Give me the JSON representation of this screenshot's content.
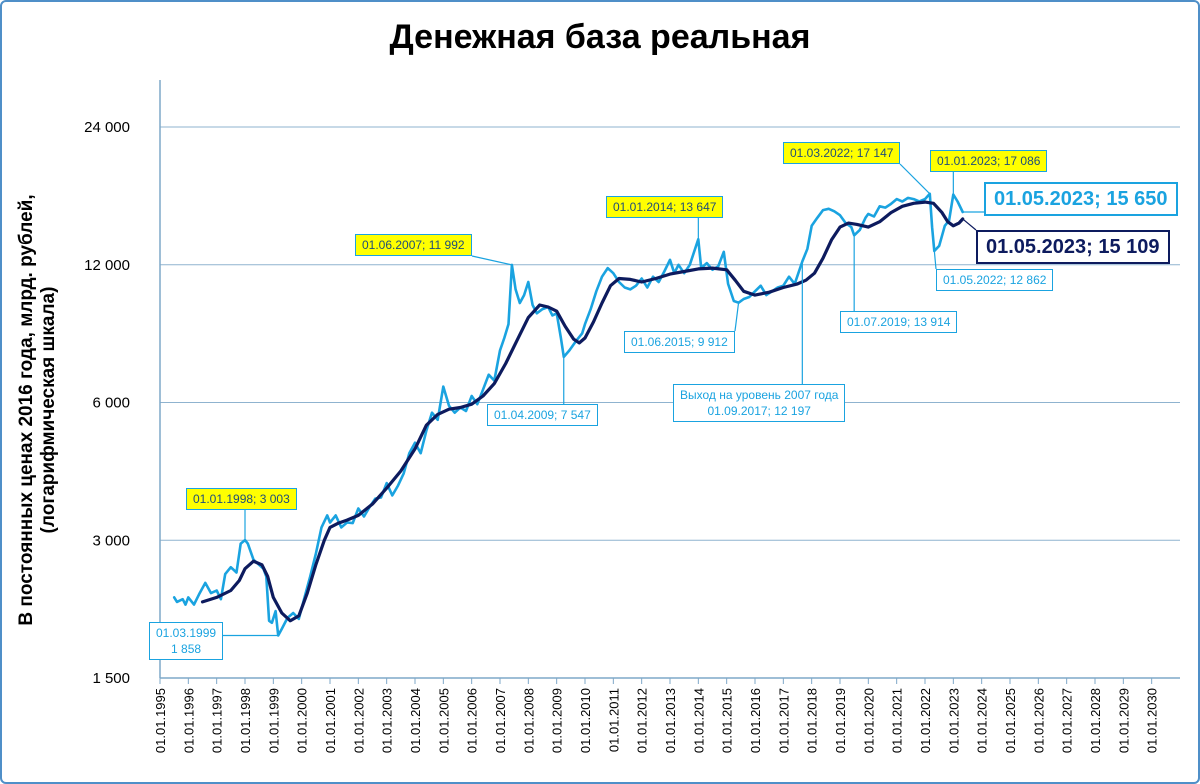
{
  "chart_data": {
    "type": "line",
    "title": "Денежная база реальная",
    "ylabel": "В постоянных ценах 2016 года, млрд. рублей,",
    "ylabel2": "(логарифмическая шкала)",
    "y_scale": "log",
    "ylim": [
      1500,
      24000
    ],
    "y_ticks": [
      1500,
      3000,
      6000,
      12000,
      24000
    ],
    "y_tick_labels": [
      "1 500",
      "3 000",
      "6 000",
      "12 000",
      "24 000"
    ],
    "grid": true,
    "x_tick_labels": [
      "01.01.1995",
      "01.01.1996",
      "01.01.1997",
      "01.01.1998",
      "01.01.1999",
      "01.01.2000",
      "01.01.2001",
      "01.01.2002",
      "01.01.2003",
      "01.01.2004",
      "01.01.2005",
      "01.01.2006",
      "01.01.2007",
      "01.01.2008",
      "01.01.2009",
      "01.01.2010",
      "01.01.2011",
      "01.01.2012",
      "01.01.2013",
      "01.01.2014",
      "01.01.2015",
      "01.01.2016",
      "01.01.2017",
      "01.01.2018",
      "01.01.2019",
      "01.01.2020",
      "01.01.2021",
      "01.01.2022",
      "01.01.2023",
      "01.01.2024",
      "01.01.2025",
      "01.01.2026",
      "01.01.2027",
      "01.01.2028",
      "01.01.2029",
      "01.01.2030"
    ],
    "xlim": [
      1995.0,
      2031.0
    ],
    "colors": {
      "monthly": "#1aa3e0",
      "trend": "#0d1b5e",
      "grid": "#8fb3cf",
      "axis": "#7fa8c8"
    },
    "series": [
      {
        "role": "monthly",
        "points": [
          [
            1995.5,
            2250
          ],
          [
            1995.6,
            2200
          ],
          [
            1995.8,
            2230
          ],
          [
            1995.9,
            2170
          ],
          [
            1996.0,
            2250
          ],
          [
            1996.2,
            2170
          ],
          [
            1996.4,
            2300
          ],
          [
            1996.6,
            2420
          ],
          [
            1996.8,
            2300
          ],
          [
            1997.0,
            2330
          ],
          [
            1997.15,
            2230
          ],
          [
            1997.3,
            2530
          ],
          [
            1997.5,
            2620
          ],
          [
            1997.7,
            2550
          ],
          [
            1997.85,
            2950
          ],
          [
            1998.0,
            3003
          ],
          [
            1998.1,
            2950
          ],
          [
            1998.3,
            2720
          ],
          [
            1998.5,
            2650
          ],
          [
            1998.65,
            2600
          ],
          [
            1998.75,
            2500
          ],
          [
            1998.85,
            2000
          ],
          [
            1998.95,
            1980
          ],
          [
            1999.08,
            2100
          ],
          [
            1999.17,
            1858
          ],
          [
            1999.3,
            1920
          ],
          [
            1999.5,
            2030
          ],
          [
            1999.7,
            2080
          ],
          [
            1999.9,
            2020
          ],
          [
            2000.1,
            2250
          ],
          [
            2000.3,
            2500
          ],
          [
            2000.5,
            2800
          ],
          [
            2000.7,
            3200
          ],
          [
            2000.9,
            3400
          ],
          [
            2001.0,
            3280
          ],
          [
            2001.2,
            3400
          ],
          [
            2001.4,
            3200
          ],
          [
            2001.6,
            3280
          ],
          [
            2001.8,
            3270
          ],
          [
            2002.0,
            3520
          ],
          [
            2002.2,
            3380
          ],
          [
            2002.4,
            3550
          ],
          [
            2002.6,
            3700
          ],
          [
            2002.8,
            3720
          ],
          [
            2003.0,
            4000
          ],
          [
            2003.2,
            3760
          ],
          [
            2003.4,
            3950
          ],
          [
            2003.6,
            4200
          ],
          [
            2003.8,
            4650
          ],
          [
            2004.0,
            4900
          ],
          [
            2004.2,
            4650
          ],
          [
            2004.4,
            5200
          ],
          [
            2004.6,
            5700
          ],
          [
            2004.8,
            5500
          ],
          [
            2005.0,
            6500
          ],
          [
            2005.2,
            5900
          ],
          [
            2005.4,
            5700
          ],
          [
            2005.6,
            5850
          ],
          [
            2005.8,
            5750
          ],
          [
            2006.0,
            6200
          ],
          [
            2006.2,
            5950
          ],
          [
            2006.4,
            6400
          ],
          [
            2006.6,
            6900
          ],
          [
            2006.8,
            6700
          ],
          [
            2007.0,
            7800
          ],
          [
            2007.15,
            8300
          ],
          [
            2007.3,
            8900
          ],
          [
            2007.42,
            11992
          ],
          [
            2007.55,
            10600
          ],
          [
            2007.7,
            9900
          ],
          [
            2007.85,
            10300
          ],
          [
            2008.0,
            11000
          ],
          [
            2008.15,
            9800
          ],
          [
            2008.3,
            9400
          ],
          [
            2008.5,
            9600
          ],
          [
            2008.7,
            9700
          ],
          [
            2008.85,
            9300
          ],
          [
            2009.0,
            9400
          ],
          [
            2009.15,
            8300
          ],
          [
            2009.25,
            7547
          ],
          [
            2009.45,
            7800
          ],
          [
            2009.7,
            8200
          ],
          [
            2009.9,
            8500
          ],
          [
            2010.0,
            8900
          ],
          [
            2010.2,
            9600
          ],
          [
            2010.4,
            10500
          ],
          [
            2010.6,
            11300
          ],
          [
            2010.8,
            11800
          ],
          [
            2011.0,
            11500
          ],
          [
            2011.2,
            11000
          ],
          [
            2011.4,
            10700
          ],
          [
            2011.6,
            10600
          ],
          [
            2011.8,
            10800
          ],
          [
            2012.0,
            11200
          ],
          [
            2012.2,
            10700
          ],
          [
            2012.4,
            11300
          ],
          [
            2012.6,
            11000
          ],
          [
            2012.8,
            11600
          ],
          [
            2013.0,
            12300
          ],
          [
            2013.15,
            11500
          ],
          [
            2013.3,
            12000
          ],
          [
            2013.5,
            11500
          ],
          [
            2013.7,
            12000
          ],
          [
            2014.0,
            13647
          ],
          [
            2014.1,
            11800
          ],
          [
            2014.3,
            12100
          ],
          [
            2014.5,
            11700
          ],
          [
            2014.7,
            11900
          ],
          [
            2014.9,
            12800
          ],
          [
            2015.05,
            10900
          ],
          [
            2015.25,
            10000
          ],
          [
            2015.42,
            9912
          ],
          [
            2015.6,
            10100
          ],
          [
            2015.8,
            10200
          ],
          [
            2016.0,
            10500
          ],
          [
            2016.2,
            10800
          ],
          [
            2016.4,
            10300
          ],
          [
            2016.6,
            10500
          ],
          [
            2016.8,
            10700
          ],
          [
            2017.0,
            10800
          ],
          [
            2017.2,
            11300
          ],
          [
            2017.4,
            10900
          ],
          [
            2017.67,
            12197
          ],
          [
            2017.85,
            13000
          ],
          [
            2018.0,
            14600
          ],
          [
            2018.2,
            15200
          ],
          [
            2018.4,
            15800
          ],
          [
            2018.6,
            15900
          ],
          [
            2018.8,
            15700
          ],
          [
            2019.0,
            15400
          ],
          [
            2019.2,
            14800
          ],
          [
            2019.4,
            14500
          ],
          [
            2019.5,
            13914
          ],
          [
            2019.7,
            14300
          ],
          [
            2019.9,
            15200
          ],
          [
            2020.0,
            15500
          ],
          [
            2020.2,
            15300
          ],
          [
            2020.4,
            16100
          ],
          [
            2020.6,
            16000
          ],
          [
            2020.8,
            16300
          ],
          [
            2021.0,
            16700
          ],
          [
            2021.2,
            16500
          ],
          [
            2021.4,
            16800
          ],
          [
            2021.6,
            16700
          ],
          [
            2021.8,
            16500
          ],
          [
            2022.0,
            16700
          ],
          [
            2022.17,
            17147
          ],
          [
            2022.25,
            14500
          ],
          [
            2022.33,
            12862
          ],
          [
            2022.5,
            13200
          ],
          [
            2022.7,
            14600
          ],
          [
            2022.85,
            15000
          ],
          [
            2023.0,
            17086
          ],
          [
            2023.15,
            16500
          ],
          [
            2023.33,
            15650
          ]
        ]
      },
      {
        "role": "trend",
        "points": [
          [
            1996.5,
            2200
          ],
          [
            1997.0,
            2250
          ],
          [
            1997.5,
            2330
          ],
          [
            1997.8,
            2450
          ],
          [
            1998.0,
            2600
          ],
          [
            1998.3,
            2700
          ],
          [
            1998.6,
            2650
          ],
          [
            1998.8,
            2500
          ],
          [
            1999.0,
            2250
          ],
          [
            1999.3,
            2080
          ],
          [
            1999.6,
            2000
          ],
          [
            1999.9,
            2050
          ],
          [
            2000.2,
            2300
          ],
          [
            2000.5,
            2650
          ],
          [
            2000.8,
            3000
          ],
          [
            2001.0,
            3200
          ],
          [
            2001.3,
            3270
          ],
          [
            2001.6,
            3320
          ],
          [
            2002.0,
            3400
          ],
          [
            2002.5,
            3600
          ],
          [
            2003.0,
            3900
          ],
          [
            2003.5,
            4250
          ],
          [
            2004.0,
            4750
          ],
          [
            2004.4,
            5350
          ],
          [
            2004.8,
            5650
          ],
          [
            2005.2,
            5800
          ],
          [
            2005.6,
            5850
          ],
          [
            2006.0,
            5950
          ],
          [
            2006.4,
            6200
          ],
          [
            2006.8,
            6600
          ],
          [
            2007.2,
            7300
          ],
          [
            2007.6,
            8200
          ],
          [
            2008.0,
            9200
          ],
          [
            2008.4,
            9800
          ],
          [
            2008.7,
            9700
          ],
          [
            2009.0,
            9500
          ],
          [
            2009.3,
            8800
          ],
          [
            2009.6,
            8250
          ],
          [
            2009.8,
            8100
          ],
          [
            2010.0,
            8300
          ],
          [
            2010.3,
            9000
          ],
          [
            2010.6,
            9900
          ],
          [
            2010.9,
            10800
          ],
          [
            2011.2,
            11200
          ],
          [
            2011.6,
            11150
          ],
          [
            2012.0,
            11000
          ],
          [
            2012.5,
            11200
          ],
          [
            2013.0,
            11450
          ],
          [
            2013.5,
            11600
          ],
          [
            2014.0,
            11750
          ],
          [
            2014.5,
            11800
          ],
          [
            2015.0,
            11700
          ],
          [
            2015.3,
            11100
          ],
          [
            2015.6,
            10500
          ],
          [
            2016.0,
            10300
          ],
          [
            2016.5,
            10450
          ],
          [
            2017.0,
            10700
          ],
          [
            2017.5,
            10900
          ],
          [
            2017.8,
            11100
          ],
          [
            2018.1,
            11500
          ],
          [
            2018.4,
            12400
          ],
          [
            2018.7,
            13600
          ],
          [
            2019.0,
            14500
          ],
          [
            2019.3,
            14800
          ],
          [
            2019.6,
            14700
          ],
          [
            2020.0,
            14500
          ],
          [
            2020.4,
            14900
          ],
          [
            2020.8,
            15600
          ],
          [
            2021.2,
            16100
          ],
          [
            2021.6,
            16350
          ],
          [
            2022.0,
            16450
          ],
          [
            2022.3,
            16350
          ],
          [
            2022.6,
            15600
          ],
          [
            2022.8,
            14900
          ],
          [
            2023.0,
            14600
          ],
          [
            2023.2,
            14800
          ],
          [
            2023.33,
            15109
          ]
        ]
      }
    ],
    "annotations": [
      {
        "id": "a1998",
        "text": "01.01.1998;  3 003",
        "style": "y"
      },
      {
        "id": "a1999",
        "line1": "01.03.1999",
        "line2": "1 858",
        "style": "w"
      },
      {
        "id": "a2007",
        "text": "01.06.2007;  11 992",
        "style": "y"
      },
      {
        "id": "a2009",
        "text": "01.04.2009;  7 547",
        "style": "w"
      },
      {
        "id": "a2014",
        "text": "01.01.2014;  13 647",
        "style": "y"
      },
      {
        "id": "a2015",
        "text": "01.06.2015;  9 912",
        "style": "w"
      },
      {
        "id": "a2017",
        "line1": "Выход на уровень 2007 года",
        "line2": "01.09.2017;  12 197",
        "style": "w"
      },
      {
        "id": "a2019",
        "text": "01.07.2019;  13 914",
        "style": "w"
      },
      {
        "id": "a2022m",
        "text": "01.03.2022;  17 147",
        "style": "y"
      },
      {
        "id": "a2022e",
        "text": "01.05.2022;  12 862",
        "style": "w"
      },
      {
        "id": "a2023",
        "text": "01.01.2023;  17 086",
        "style": "y"
      },
      {
        "id": "aLast",
        "text": "01.05.2023;  15 650",
        "style": "big"
      },
      {
        "id": "aTrend",
        "text": "01.05.2023;  15 109",
        "style": "bigd"
      }
    ]
  }
}
